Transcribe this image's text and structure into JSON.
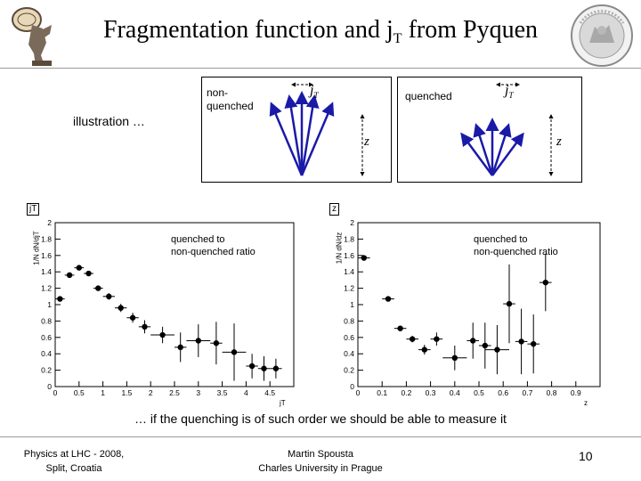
{
  "slide": {
    "title_main": "Fragmentation function and j",
    "title_sub": "T",
    "title_tail": " from Pyquen",
    "illustration_label": "illustration …",
    "box_nonquenched": {
      "label": "non-\nquenched",
      "jt_label": "j",
      "jt_sub": "T",
      "z_label": "z"
    },
    "box_quenched": {
      "label": "quenched",
      "jt_label": "j",
      "jt_sub": "T",
      "z_label": "z"
    },
    "question": "… if the quenching is of such order we should be able to measure it",
    "footer": {
      "left_line1": "Physics at LHC - 2008,",
      "left_line2": "Split, Croatia",
      "center_line1": "Martin Spousta",
      "center_line2": "Charles University in Prague",
      "page_number": "10"
    }
  },
  "chart_data": [
    {
      "type": "scatter",
      "corner_label": "jT",
      "annotation_line1": "quenched to",
      "annotation_line2": "non-quenched ratio",
      "xlabel": "jT",
      "ylabel": "1/N dN/djT",
      "xlim": [
        0,
        5
      ],
      "ylim": [
        0,
        2
      ],
      "x_ticks": [
        "0",
        "0.5",
        "1",
        "1.5",
        "2",
        "2.5",
        "3",
        "3.5",
        "4",
        "4.5"
      ],
      "y_ticks": [
        "0",
        "0.2",
        "0.4",
        "0.6",
        "0.8",
        "1",
        "1.2",
        "1.4",
        "1.6",
        "1.8",
        "2"
      ],
      "points": [
        {
          "x": 0.1,
          "y": 1.07,
          "xerr": 0.1,
          "yerr": 0.02
        },
        {
          "x": 0.3,
          "y": 1.36,
          "xerr": 0.1,
          "yerr": 0.03
        },
        {
          "x": 0.5,
          "y": 1.45,
          "xerr": 0.1,
          "yerr": 0.03
        },
        {
          "x": 0.7,
          "y": 1.38,
          "xerr": 0.1,
          "yerr": 0.03
        },
        {
          "x": 0.9,
          "y": 1.2,
          "xerr": 0.1,
          "yerr": 0.03
        },
        {
          "x": 1.125,
          "y": 1.1,
          "xerr": 0.125,
          "yerr": 0.04
        },
        {
          "x": 1.375,
          "y": 0.96,
          "xerr": 0.125,
          "yerr": 0.05
        },
        {
          "x": 1.625,
          "y": 0.84,
          "xerr": 0.125,
          "yerr": 0.06
        },
        {
          "x": 1.875,
          "y": 0.73,
          "xerr": 0.125,
          "yerr": 0.08
        },
        {
          "x": 2.25,
          "y": 0.63,
          "xerr": 0.25,
          "yerr": 0.1
        },
        {
          "x": 2.625,
          "y": 0.48,
          "xerr": 0.125,
          "yerr": 0.18
        },
        {
          "x": 3.0,
          "y": 0.56,
          "xerr": 0.25,
          "yerr": 0.2
        },
        {
          "x": 3.375,
          "y": 0.53,
          "xerr": 0.125,
          "yerr": 0.26
        },
        {
          "x": 3.75,
          "y": 0.42,
          "xerr": 0.25,
          "yerr": 0.35
        },
        {
          "x": 4.125,
          "y": 0.25,
          "xerr": 0.125,
          "yerr": 0.15
        },
        {
          "x": 4.375,
          "y": 0.22,
          "xerr": 0.125,
          "yerr": 0.15
        },
        {
          "x": 4.625,
          "y": 0.22,
          "xerr": 0.125,
          "yerr": 0.12
        }
      ]
    },
    {
      "type": "scatter",
      "corner_label": "z",
      "annotation_line1": "quenched to",
      "annotation_line2": "non-quenched ratio",
      "xlabel": "z",
      "ylabel": "1/N dN/dz",
      "xlim": [
        0,
        1
      ],
      "ylim": [
        0,
        2
      ],
      "x_ticks": [
        "0",
        "0.1",
        "0.2",
        "0.3",
        "0.4",
        "0.5",
        "0.6",
        "0.7",
        "0.8",
        "0.9"
      ],
      "y_ticks": [
        "0",
        "0.2",
        "0.4",
        "0.6",
        "0.8",
        "1",
        "1.2",
        "1.4",
        "1.6",
        "1.8",
        "2"
      ],
      "points": [
        {
          "x": 0.025,
          "y": 1.57,
          "xerr": 0.025,
          "yerr": 0.02
        },
        {
          "x": 0.125,
          "y": 1.07,
          "xerr": 0.025,
          "yerr": 0.02
        },
        {
          "x": 0.175,
          "y": 0.71,
          "xerr": 0.025,
          "yerr": 0.03
        },
        {
          "x": 0.225,
          "y": 0.58,
          "xerr": 0.025,
          "yerr": 0.04
        },
        {
          "x": 0.275,
          "y": 0.45,
          "xerr": 0.025,
          "yerr": 0.06
        },
        {
          "x": 0.325,
          "y": 0.58,
          "xerr": 0.025,
          "yerr": 0.08
        },
        {
          "x": 0.4,
          "y": 0.35,
          "xerr": 0.05,
          "yerr": 0.15
        },
        {
          "x": 0.475,
          "y": 0.56,
          "xerr": 0.025,
          "yerr": 0.22
        },
        {
          "x": 0.525,
          "y": 0.5,
          "xerr": 0.025,
          "yerr": 0.28
        },
        {
          "x": 0.575,
          "y": 0.45,
          "xerr": 0.05,
          "yerr": 0.3
        },
        {
          "x": 0.625,
          "y": 1.01,
          "xerr": 0.025,
          "yerr": 0.48
        },
        {
          "x": 0.675,
          "y": 0.55,
          "xerr": 0.025,
          "yerr": 0.4
        },
        {
          "x": 0.725,
          "y": 0.52,
          "xerr": 0.025,
          "yerr": 0.36
        },
        {
          "x": 0.775,
          "y": 1.27,
          "xerr": 0.025,
          "yerr": 0.35
        }
      ]
    }
  ]
}
